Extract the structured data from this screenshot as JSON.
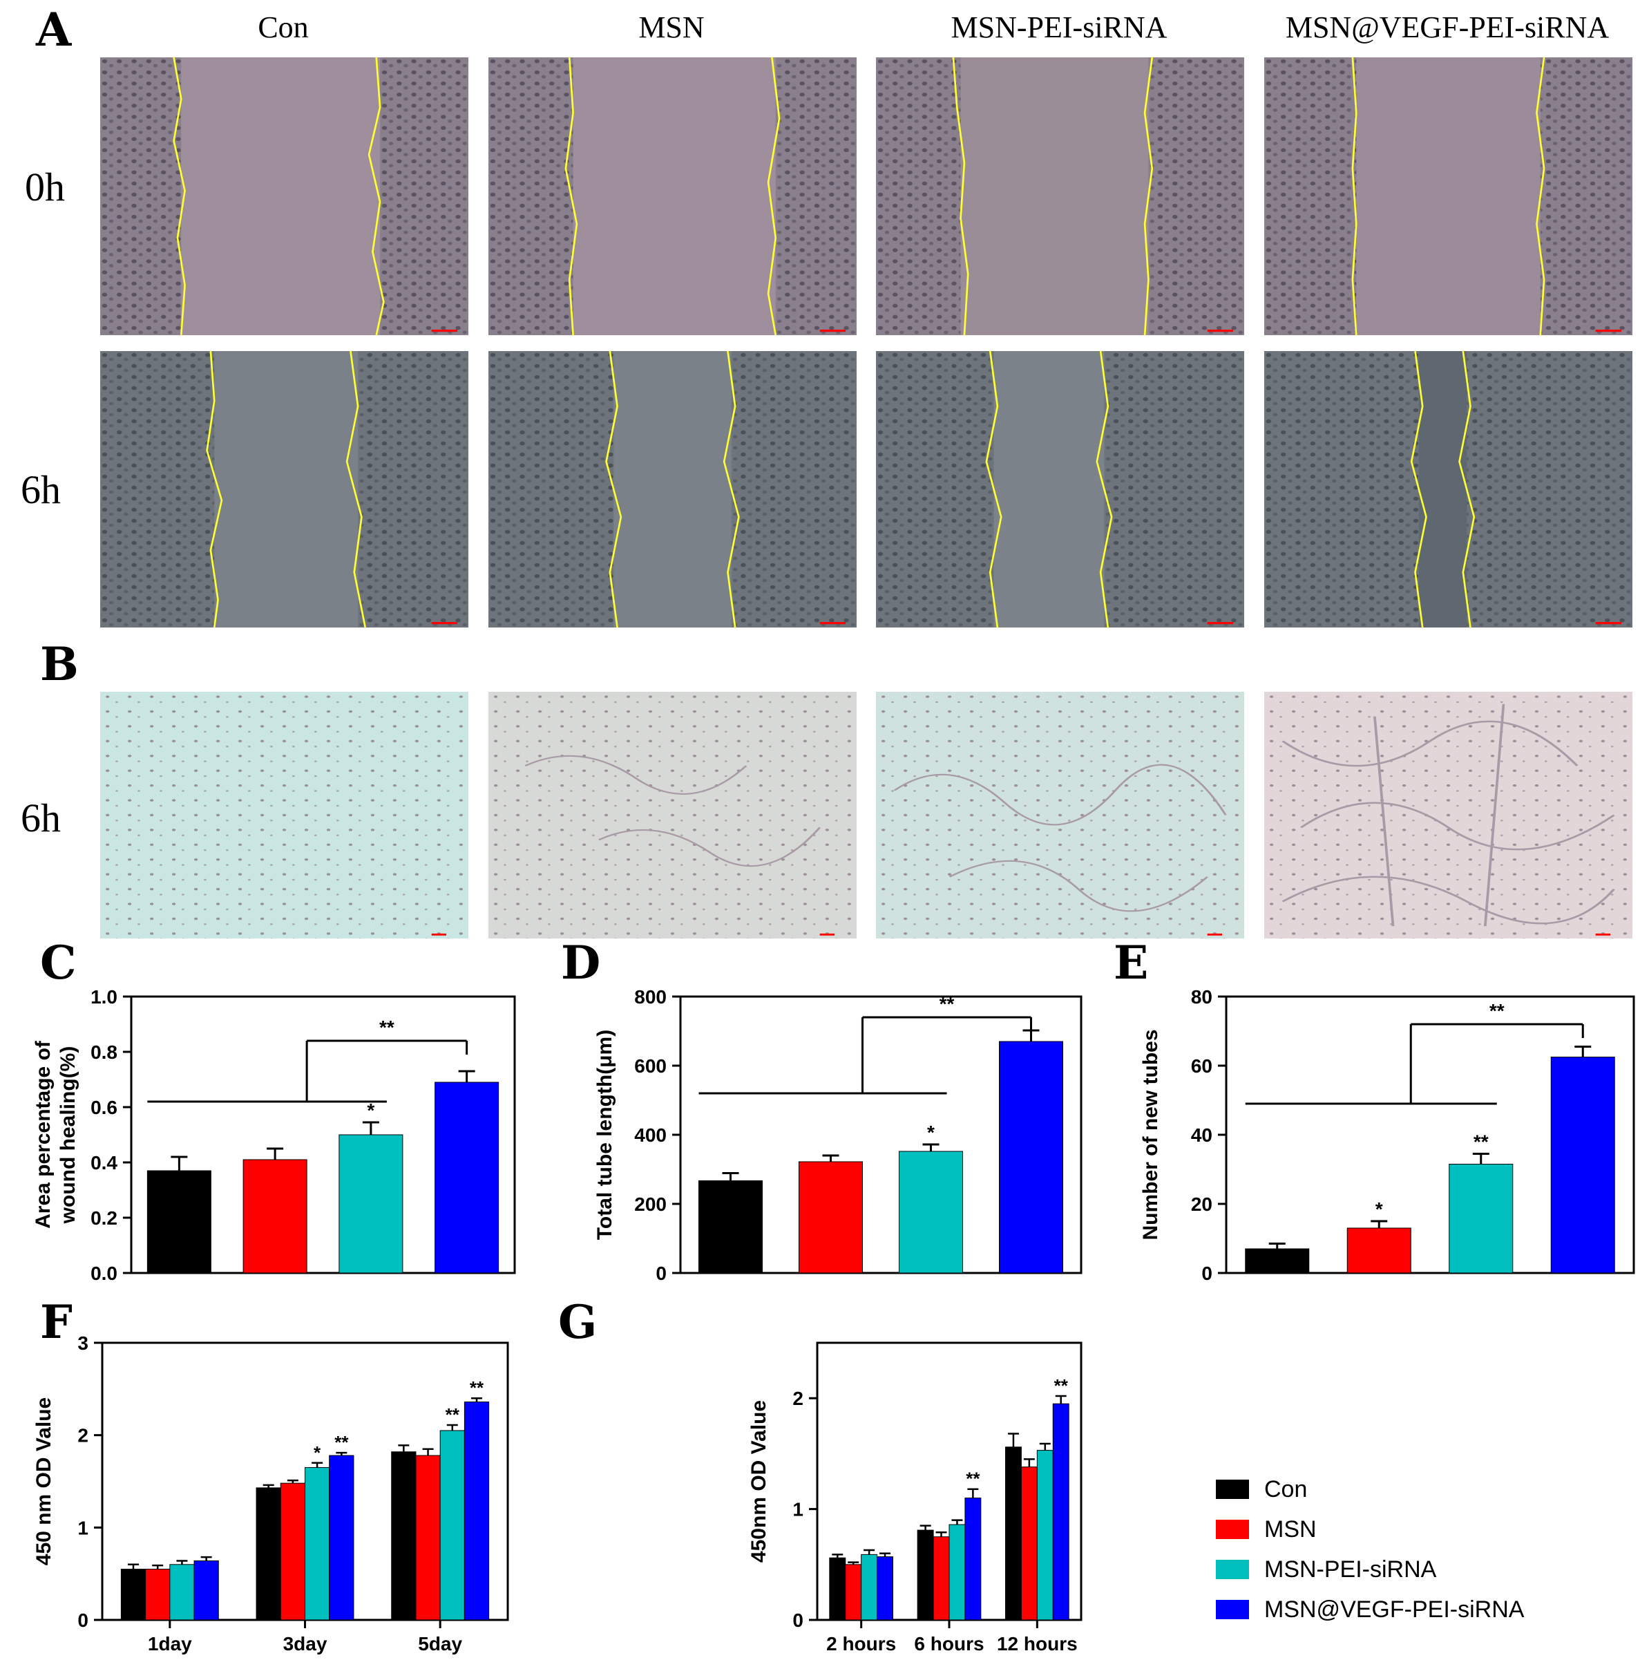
{
  "panel_letters": {
    "A": "A",
    "B": "B",
    "C": "C",
    "D": "D",
    "E": "E",
    "F": "F",
    "G": "G"
  },
  "column_headers": [
    "Con",
    "MSN",
    "MSN-PEI-siRNA",
    "MSN@VEGF-PEI-siRNA"
  ],
  "row_labels": {
    "a_0h": "0h",
    "a_6h": "6h",
    "b_6h": "6h"
  },
  "colors": {
    "con": "#000000",
    "msn": "#ff0000",
    "msn_pei": "#00bfbf",
    "msn_vegf": "#0000ff",
    "wound_edge": "#ffff33",
    "scale_bar": "#ff0000"
  },
  "legend": [
    {
      "label": "Con",
      "color": "#000000"
    },
    {
      "label": "MSN",
      "color": "#ff0000"
    },
    {
      "label": "MSN-PEI-siRNA",
      "color": "#00bfbf"
    },
    {
      "label": "MSN@VEGF-PEI-siRNA",
      "color": "#0000ff"
    }
  ],
  "chart_data": [
    {
      "id": "C",
      "type": "bar",
      "ylabel": "Area percentage of wound healing(%)",
      "ylim": [
        0,
        1.0
      ],
      "yticks": [
        "0.0",
        "0.2",
        "0.4",
        "0.6",
        "0.8",
        "1.0"
      ],
      "categories": [
        "Con",
        "MSN",
        "MSN-PEI-siRNA",
        "MSN@VEGF-PEI-siRNA"
      ],
      "values": [
        0.37,
        0.41,
        0.5,
        0.69
      ],
      "errors": [
        0.05,
        0.04,
        0.045,
        0.04
      ],
      "marks": [
        "",
        "",
        "*",
        ""
      ],
      "bracket_mark": "**"
    },
    {
      "id": "D",
      "type": "bar",
      "ylabel": "Total tube length(μm)",
      "ylim": [
        0,
        800
      ],
      "yticks": [
        "0",
        "200",
        "400",
        "600",
        "800"
      ],
      "categories": [
        "Con",
        "MSN",
        "MSN-PEI-siRNA",
        "MSN@VEGF-PEI-siRNA"
      ],
      "values": [
        267,
        322,
        352,
        670
      ],
      "errors": [
        22,
        18,
        20,
        32
      ],
      "marks": [
        "",
        "",
        "*",
        ""
      ],
      "bracket_mark": "**"
    },
    {
      "id": "E",
      "type": "bar",
      "ylabel": "Number of new tubes",
      "ylim": [
        0,
        80
      ],
      "yticks": [
        "0",
        "20",
        "40",
        "60",
        "80"
      ],
      "categories": [
        "Con",
        "MSN",
        "MSN-PEI-siRNA",
        "MSN@VEGF-PEI-siRNA"
      ],
      "values": [
        7,
        13,
        31.5,
        62.5
      ],
      "errors": [
        1.5,
        2,
        3,
        3
      ],
      "marks": [
        "",
        "*",
        "**",
        ""
      ],
      "bracket_mark": "**"
    },
    {
      "id": "F",
      "type": "bar",
      "ylabel": "450 nm OD Value",
      "ylim": [
        0,
        3
      ],
      "yticks": [
        "0",
        "1",
        "2",
        "3"
      ],
      "categories": [
        "1day",
        "3day",
        "5day"
      ],
      "series": [
        {
          "name": "Con",
          "values": [
            0.55,
            1.43,
            1.82
          ],
          "errors": [
            0.05,
            0.03,
            0.07
          ],
          "marks": [
            "",
            "",
            ""
          ]
        },
        {
          "name": "MSN",
          "values": [
            0.55,
            1.48,
            1.78
          ],
          "errors": [
            0.04,
            0.03,
            0.07
          ],
          "marks": [
            "",
            "",
            ""
          ]
        },
        {
          "name": "MSN-PEI-siRNA",
          "values": [
            0.6,
            1.65,
            2.05
          ],
          "errors": [
            0.04,
            0.05,
            0.06
          ],
          "marks": [
            "",
            "*",
            "**"
          ]
        },
        {
          "name": "MSN@VEGF-PEI-siRNA",
          "values": [
            0.64,
            1.78,
            2.36
          ],
          "errors": [
            0.04,
            0.03,
            0.04
          ],
          "marks": [
            "",
            "**",
            "**"
          ]
        }
      ]
    },
    {
      "id": "G",
      "type": "bar",
      "ylabel": "450nm OD Value",
      "ylim": [
        0,
        2.5
      ],
      "yticks": [
        "0",
        "1",
        "2"
      ],
      "categories": [
        "2 hours",
        "6 hours",
        "12 hours"
      ],
      "series": [
        {
          "name": "Con",
          "values": [
            0.56,
            0.81,
            1.56
          ],
          "errors": [
            0.03,
            0.04,
            0.12
          ],
          "marks": [
            "",
            "",
            ""
          ]
        },
        {
          "name": "MSN",
          "values": [
            0.5,
            0.75,
            1.38
          ],
          "errors": [
            0.02,
            0.04,
            0.07
          ],
          "marks": [
            "",
            "",
            ""
          ]
        },
        {
          "name": "MSN-PEI-siRNA",
          "values": [
            0.59,
            0.86,
            1.53
          ],
          "errors": [
            0.04,
            0.04,
            0.06
          ],
          "marks": [
            "",
            "",
            ""
          ]
        },
        {
          "name": "MSN@VEGF-PEI-siRNA",
          "values": [
            0.57,
            1.1,
            1.95
          ],
          "errors": [
            0.03,
            0.08,
            0.07
          ],
          "marks": [
            "",
            "**",
            "**"
          ]
        }
      ]
    }
  ]
}
